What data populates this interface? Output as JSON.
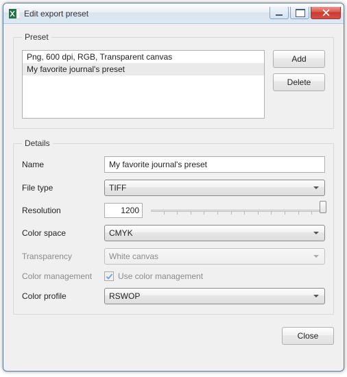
{
  "window": {
    "title": "Edit export preset"
  },
  "preset": {
    "legend": "Preset",
    "items": [
      {
        "label": "Png, 600 dpi, RGB, Transparent canvas",
        "selected": false
      },
      {
        "label": "My favorite journal's preset",
        "selected": true
      }
    ],
    "add_label": "Add",
    "delete_label": "Delete"
  },
  "details": {
    "legend": "Details",
    "name_label": "Name",
    "name_value": "My favorite journal's preset",
    "filetype_label": "File type",
    "filetype_value": "TIFF",
    "resolution_label": "Resolution",
    "resolution_value": "1200",
    "slider": {
      "min": 0,
      "max": 1200,
      "value": 1200,
      "thumb_pct": 97
    },
    "colorspace_label": "Color space",
    "colorspace_value": "CMYK",
    "transparency_label": "Transparency",
    "transparency_value": "White canvas",
    "transparency_disabled": true,
    "colormgmt_label": "Color management",
    "colormgmt_checkbox_label": "Use color management",
    "colormgmt_checked": true,
    "colormgmt_disabled": true,
    "colorprofile_label": "Color profile",
    "colorprofile_value": "RSWOP"
  },
  "footer": {
    "close_label": "Close"
  },
  "colors": {
    "window_bg": "#f0f0f0",
    "border": "#aeaeae",
    "close_red": "#c83a30",
    "excel_green": "#1e7145"
  }
}
